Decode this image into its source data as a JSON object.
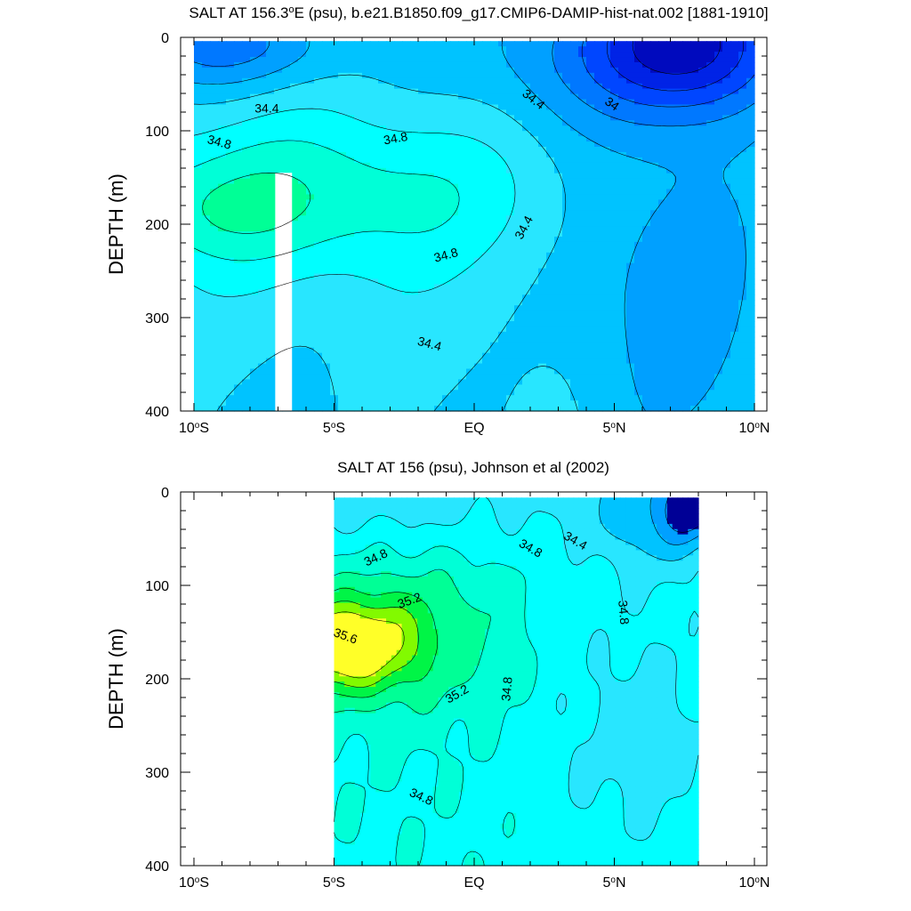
{
  "chart_data": [
    {
      "type": "contour",
      "title": "SALT AT 156.3°E (psu), b.e21.B1850.f09_g17.CMIP6-DAMIP-hist-nat.002 [1881-1910]",
      "title_parts": [
        "SALT AT 156.3",
        "o",
        "E (psu), b.e21.B1850.f09_g17.CMIP6-DAMIP-hist-nat.002 [1881-1910]"
      ],
      "xlabel": "",
      "ylabel": "DEPTH (m)",
      "units": "psu",
      "xlim": [
        -10,
        10
      ],
      "ylim": [
        0,
        400
      ],
      "y_inverted": true,
      "xticks": [
        {
          "value": -10,
          "num": "10",
          "hem": "S"
        },
        {
          "value": -5,
          "num": "5",
          "hem": "S"
        },
        {
          "value": 0,
          "num": "EQ",
          "hem": ""
        },
        {
          "value": 5,
          "num": "5",
          "hem": "N"
        },
        {
          "value": 10,
          "num": "10",
          "hem": "N"
        }
      ],
      "yticks": [
        0,
        100,
        200,
        300,
        400
      ],
      "data_extent": {
        "x": [
          -10,
          10
        ],
        "depth": [
          4,
          400
        ]
      },
      "missing_column": {
        "x": [
          -7.1,
          -6.5
        ],
        "depth": [
          145,
          400
        ]
      },
      "contour_interval": 0.2,
      "levels": [
        33.2,
        33.4,
        33.6,
        33.8,
        34.0,
        34.2,
        34.4,
        34.6,
        34.8,
        35.0,
        35.2
      ],
      "contour_labels": [
        {
          "text": "34.4",
          "x": -7.4,
          "depth": 77,
          "angle": 0
        },
        {
          "text": "34.8",
          "x": -9.1,
          "depth": 113,
          "angle": 15
        },
        {
          "text": "34.8",
          "x": -2.8,
          "depth": 109,
          "angle": -10
        },
        {
          "text": "34.8",
          "x": -1.0,
          "depth": 234,
          "angle": -15
        },
        {
          "text": "34.4",
          "x": -1.6,
          "depth": 329,
          "angle": 15
        },
        {
          "text": "34.4",
          "x": 2.1,
          "depth": 67,
          "angle": 38
        },
        {
          "text": "34",
          "x": 4.9,
          "depth": 72,
          "angle": 35
        },
        {
          "text": "34.4",
          "x": 1.8,
          "depth": 204,
          "angle": -62
        }
      ]
    },
    {
      "type": "contour",
      "title": "SALT AT 156 (psu), Johnson et al (2002)",
      "title_parts": [
        "SALT AT 156 (psu), Johnson et al (2002)"
      ],
      "xlabel": "",
      "ylabel": "DEPTH (m)",
      "units": "psu",
      "xlim": [
        -10,
        10
      ],
      "ylim": [
        0,
        400
      ],
      "y_inverted": true,
      "xticks": [
        {
          "value": -10,
          "num": "10",
          "hem": "S"
        },
        {
          "value": -5,
          "num": "5",
          "hem": "S"
        },
        {
          "value": 0,
          "num": "EQ",
          "hem": ""
        },
        {
          "value": 5,
          "num": "5",
          "hem": "N"
        },
        {
          "value": 10,
          "num": "10",
          "hem": "N"
        }
      ],
      "yticks": [
        0,
        100,
        200,
        300,
        400
      ],
      "data_extent": {
        "x": [
          -5,
          8
        ],
        "depth": [
          6,
          400
        ]
      },
      "contour_interval": 0.2,
      "levels": [
        34.0,
        34.2,
        34.4,
        34.6,
        34.8,
        35.0,
        35.2,
        35.4,
        35.6
      ],
      "contour_labels": [
        {
          "text": "34.8",
          "x": -3.5,
          "depth": 71,
          "angle": -25
        },
        {
          "text": "35.2",
          "x": -2.3,
          "depth": 117,
          "angle": -20
        },
        {
          "text": "35.6",
          "x": -4.6,
          "depth": 155,
          "angle": 20
        },
        {
          "text": "35.2",
          "x": -0.6,
          "depth": 217,
          "angle": -30
        },
        {
          "text": "34.8",
          "x": 1.2,
          "depth": 211,
          "angle": -85
        },
        {
          "text": "34.8",
          "x": 2.0,
          "depth": 61,
          "angle": 30
        },
        {
          "text": "34.4",
          "x": 3.6,
          "depth": 53,
          "angle": 30
        },
        {
          "text": "34.8",
          "x": 5.3,
          "depth": 129,
          "angle": 85
        },
        {
          "text": "34.8",
          "x": -1.9,
          "depth": 327,
          "angle": 25
        }
      ]
    }
  ]
}
